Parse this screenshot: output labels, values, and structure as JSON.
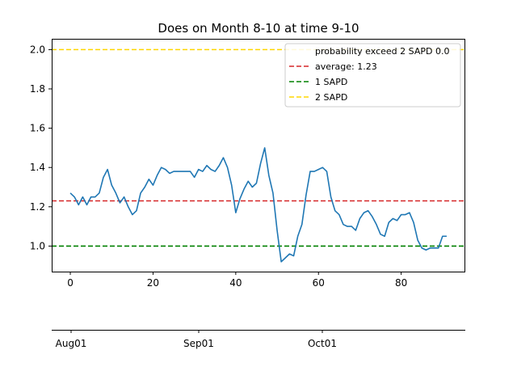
{
  "chart_data": {
    "type": "line",
    "title": "Does on Month 8-10 at time 9-10",
    "xlabel": "",
    "ylabel": "",
    "xlim": [
      -4.5,
      95.5
    ],
    "ylim": [
      0.87,
      2.055
    ],
    "x_ticks": [
      0,
      20,
      40,
      60,
      80
    ],
    "x_tick_labels": [
      "0",
      "20",
      "40",
      "60",
      "80"
    ],
    "y_ticks": [
      1.0,
      1.2,
      1.4,
      1.6,
      1.8,
      2.0
    ],
    "y_tick_labels": [
      "1.0",
      "1.2",
      "1.4",
      "1.6",
      "1.8",
      "2.0"
    ],
    "grid": false,
    "legend_position": "top-right",
    "series": [
      {
        "name": "",
        "color": "#1f77b4",
        "x": [
          0,
          1,
          2,
          3,
          4,
          5,
          6,
          7,
          8,
          9,
          10,
          11,
          12,
          13,
          14,
          15,
          16,
          17,
          18,
          19,
          20,
          21,
          22,
          23,
          24,
          25,
          26,
          27,
          28,
          29,
          30,
          31,
          32,
          33,
          34,
          35,
          36,
          37,
          38,
          39,
          40,
          41,
          42,
          43,
          44,
          45,
          46,
          47,
          48,
          49,
          50,
          51,
          52,
          53,
          54,
          55,
          56,
          57,
          58,
          59,
          60,
          61,
          62,
          63,
          64,
          65,
          66,
          67,
          68,
          69,
          70,
          71,
          72,
          73,
          74,
          75,
          76,
          77,
          78,
          79,
          80,
          81,
          82,
          83,
          84,
          85,
          86,
          87,
          88,
          89,
          90,
          91
        ],
        "y": [
          1.27,
          1.25,
          1.21,
          1.25,
          1.21,
          1.25,
          1.25,
          1.27,
          1.35,
          1.39,
          1.31,
          1.27,
          1.22,
          1.25,
          1.2,
          1.16,
          1.18,
          1.27,
          1.3,
          1.34,
          1.31,
          1.36,
          1.4,
          1.39,
          1.37,
          1.38,
          1.38,
          1.38,
          1.38,
          1.38,
          1.35,
          1.39,
          1.38,
          1.41,
          1.39,
          1.38,
          1.41,
          1.45,
          1.4,
          1.31,
          1.17,
          1.24,
          1.29,
          1.33,
          1.3,
          1.32,
          1.42,
          1.5,
          1.36,
          1.27,
          1.08,
          0.92,
          0.94,
          0.96,
          0.95,
          1.05,
          1.11,
          1.26,
          1.38,
          1.38,
          1.39,
          1.4,
          1.38,
          1.25,
          1.18,
          1.16,
          1.11,
          1.1,
          1.1,
          1.08,
          1.14,
          1.17,
          1.18,
          1.15,
          1.11,
          1.06,
          1.05,
          1.12,
          1.14,
          1.13,
          1.16,
          1.16,
          1.17,
          1.12,
          1.03,
          0.99,
          0.98,
          0.99,
          0.99,
          0.99,
          1.05,
          1.05
        ]
      }
    ],
    "hlines": [
      {
        "name": "average: 1.23",
        "y": 1.23,
        "color": "#d62728",
        "style": "dashed"
      },
      {
        "name": "1 SAPD",
        "y": 1.0,
        "color": "#008000",
        "style": "dashed"
      },
      {
        "name": "2 SAPD",
        "y": 2.0,
        "color": "#ffd700",
        "style": "dashed"
      }
    ],
    "legend": [
      {
        "label": "probability exceed 2 SAPD 0.0",
        "color": "none"
      },
      {
        "label": "average: 1.23",
        "color": "#d62728"
      },
      {
        "label": "1 SAPD",
        "color": "#008000"
      },
      {
        "label": "2 SAPD",
        "color": "#ffd700"
      }
    ],
    "date_axis": {
      "tick_labels": [
        "Aug01",
        "Sep01",
        "Oct01"
      ]
    }
  }
}
